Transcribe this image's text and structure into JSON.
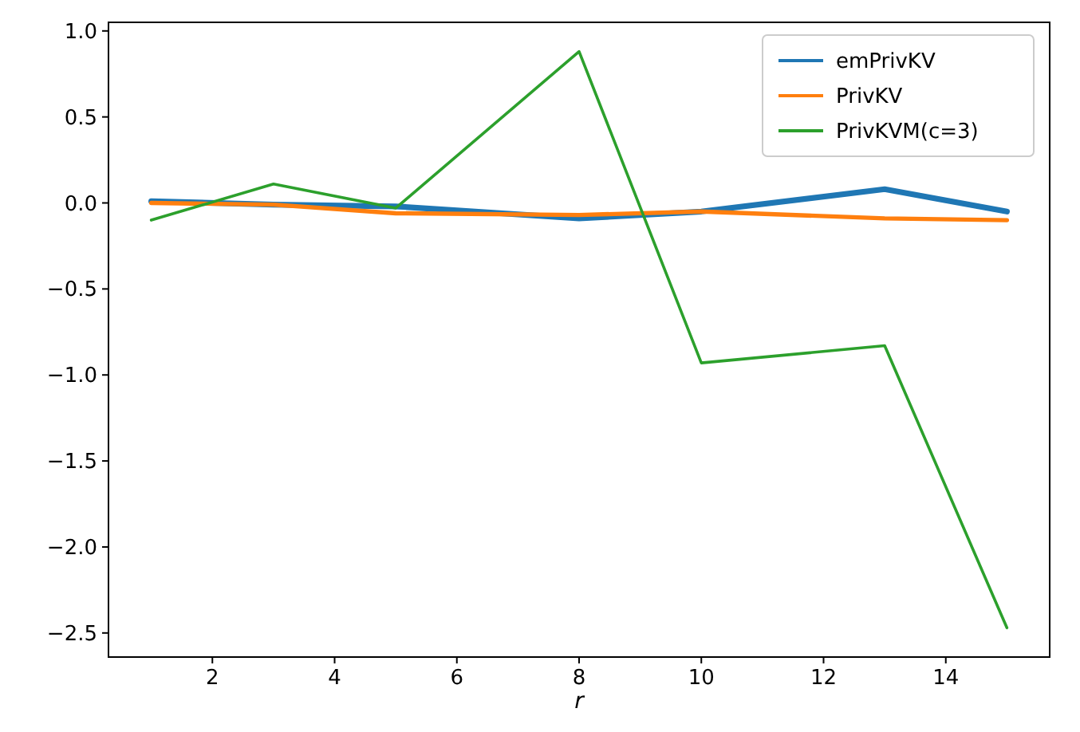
{
  "chart_data": {
    "type": "line",
    "xlabel": "r",
    "x": [
      1,
      3,
      5,
      8,
      10,
      13,
      15
    ],
    "series": [
      {
        "name": "emPrivKV",
        "color": "#1f77b4",
        "values": [
          0.01,
          -0.01,
          -0.02,
          -0.09,
          -0.05,
          0.08,
          -0.05
        ]
      },
      {
        "name": "PrivKV",
        "color": "#ff7f0e",
        "values": [
          0.0,
          -0.01,
          -0.06,
          -0.07,
          -0.05,
          -0.09,
          -0.1
        ]
      },
      {
        "name": "PrivKVM(c=3)",
        "color": "#2ca02c",
        "values": [
          -0.1,
          0.11,
          -0.03,
          0.88,
          -0.93,
          -0.83,
          -2.47
        ]
      }
    ],
    "xlim": [
      0.3,
      15.7
    ],
    "xticks": [
      2,
      4,
      6,
      8,
      10,
      12,
      14
    ],
    "ylim": [
      -2.64,
      1.05
    ],
    "yticks": [
      {
        "value": -2.5,
        "label": "−2.5"
      },
      {
        "value": -2,
        "label": "−2.0"
      },
      {
        "value": -1.5,
        "label": "−1.5"
      },
      {
        "value": -1,
        "label": "−1.0"
      },
      {
        "value": -0.5,
        "label": "−0.5"
      },
      {
        "value": 0,
        "label": "0.0"
      },
      {
        "value": 0.5,
        "label": "0.5"
      },
      {
        "value": 1,
        "label": "1.0"
      }
    ],
    "legend": "top right",
    "grid": false
  }
}
